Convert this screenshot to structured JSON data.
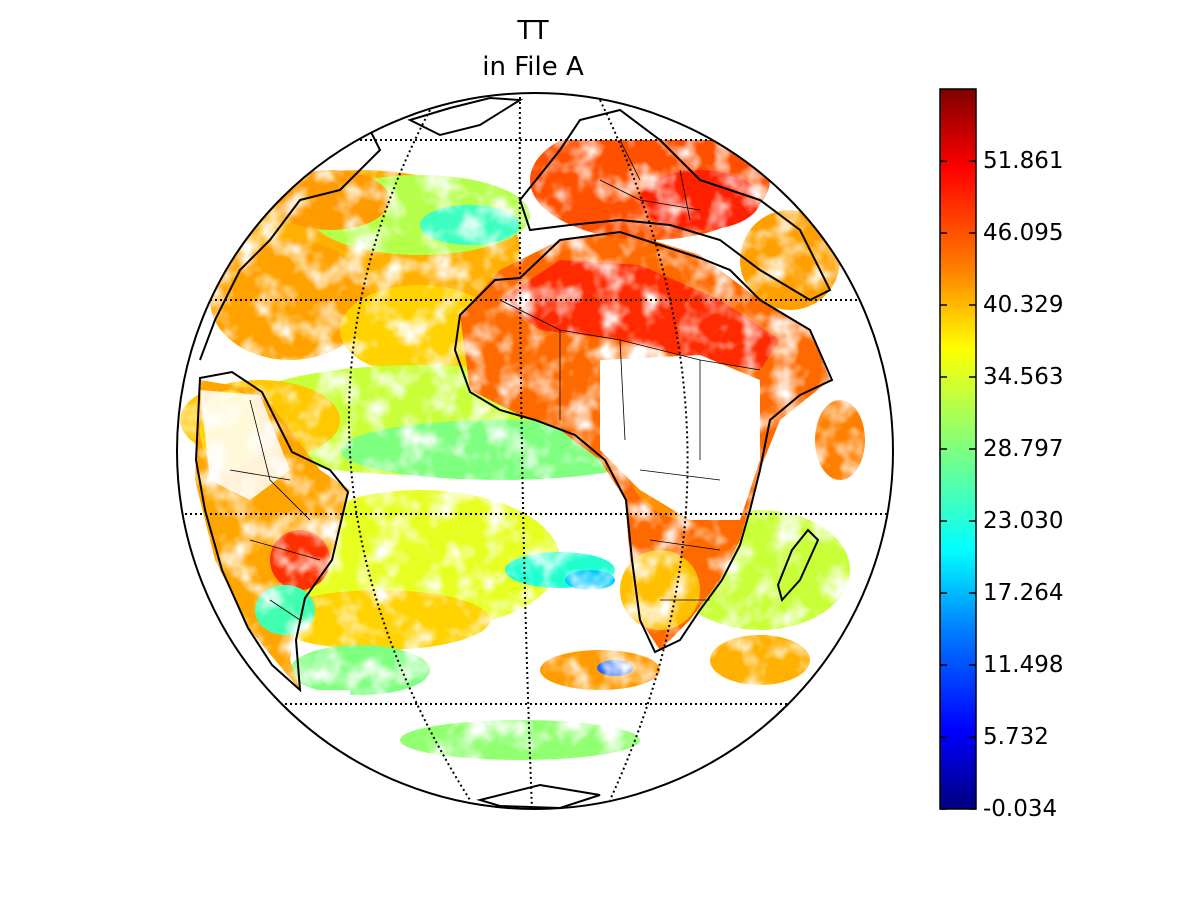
{
  "title": [
    "TT",
    "in File A"
  ],
  "colorbar": {
    "ticks": [
      "51.861",
      "46.095",
      "40.329",
      "34.563",
      "28.797",
      "23.030",
      "17.264",
      "11.498",
      "5.732",
      "-0.034"
    ],
    "tick_values": [
      51.861,
      46.095,
      40.329,
      34.563,
      28.797,
      23.03,
      17.264,
      11.498,
      5.732,
      -0.034
    ],
    "min": -0.034,
    "max": 57.627,
    "colormap": "jet",
    "colors": [
      "#00007f",
      "#0000ff",
      "#007fff",
      "#00ffff",
      "#7fff7f",
      "#ffff00",
      "#ff7f00",
      "#ff0000",
      "#7f0000"
    ]
  },
  "map": {
    "projection": "orthographic",
    "graticule": "dotted",
    "background": "#ffffff",
    "coastline_color": "#000000"
  }
}
